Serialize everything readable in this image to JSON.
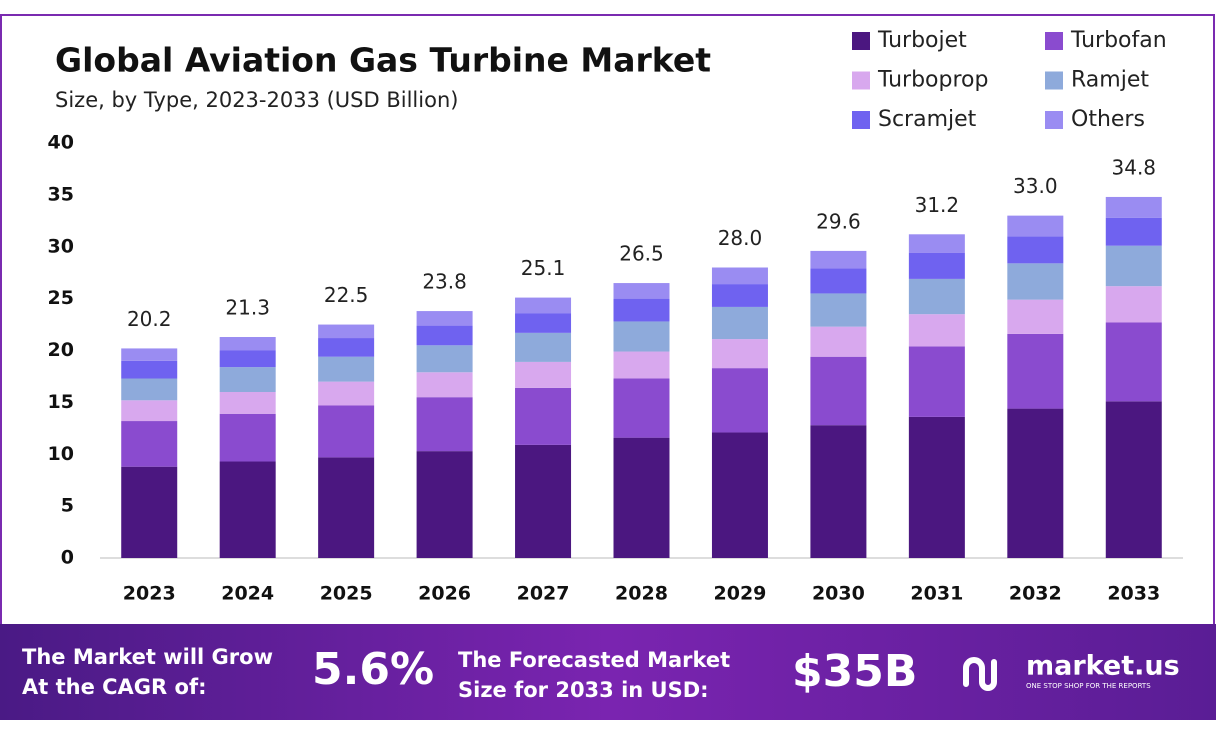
{
  "chart_data": {
    "type": "stacked-bar",
    "title": "Global Aviation Gas Turbine Market",
    "subtitle": "Size, by Type, 2023-2033 (USD Billion)",
    "categories": [
      "2023",
      "2024",
      "2025",
      "2026",
      "2027",
      "2028",
      "2029",
      "2030",
      "2031",
      "2032",
      "2033"
    ],
    "series": [
      {
        "name": "Turbojet",
        "color": "#4b1780",
        "values": [
          8.8,
          9.3,
          9.7,
          10.3,
          10.9,
          11.6,
          12.1,
          12.8,
          13.6,
          14.4,
          15.1
        ]
      },
      {
        "name": "Turbofan",
        "color": "#8a4bcf",
        "values": [
          4.4,
          4.6,
          5.0,
          5.2,
          5.5,
          5.7,
          6.2,
          6.6,
          6.8,
          7.2,
          7.6
        ]
      },
      {
        "name": "Turboprop",
        "color": "#d8a8ee",
        "values": [
          2.0,
          2.1,
          2.3,
          2.4,
          2.5,
          2.6,
          2.8,
          2.9,
          3.1,
          3.3,
          3.5
        ]
      },
      {
        "name": "Ramjet",
        "color": "#8eaadb",
        "values": [
          2.1,
          2.4,
          2.4,
          2.6,
          2.8,
          2.9,
          3.1,
          3.2,
          3.4,
          3.5,
          3.9
        ]
      },
      {
        "name": "Scramjet",
        "color": "#6f62f0",
        "values": [
          1.7,
          1.6,
          1.8,
          1.9,
          1.9,
          2.2,
          2.2,
          2.4,
          2.5,
          2.6,
          2.7
        ]
      },
      {
        "name": "Others",
        "color": "#9a8cf2",
        "values": [
          1.2,
          1.3,
          1.3,
          1.4,
          1.5,
          1.5,
          1.6,
          1.7,
          1.8,
          2.0,
          2.0
        ]
      }
    ],
    "totals": [
      20.2,
      21.3,
      22.5,
      23.8,
      25.1,
      26.5,
      28.0,
      29.6,
      31.2,
      33.0,
      34.8
    ],
    "totals_labels": [
      "20.2",
      "21.3",
      "22.5",
      "23.8",
      "25.1",
      "26.5",
      "28.0",
      "29.6",
      "31.2",
      "33.0",
      "34.8"
    ],
    "ylim": [
      0,
      40
    ],
    "yticks": [
      0,
      5,
      10,
      15,
      20,
      25,
      30,
      35,
      40
    ],
    "grid": false,
    "legend": "top-right"
  },
  "footer": {
    "cagr_text": [
      "The Market will Grow",
      "At the CAGR of:"
    ],
    "cagr": "5.6%",
    "forecast_text": [
      "The Forecasted Market",
      "Size for 2033 in USD:"
    ],
    "forecast": "$35B",
    "brand": "market.us",
    "tagline": "ONE STOP SHOP FOR THE REPORTS"
  }
}
